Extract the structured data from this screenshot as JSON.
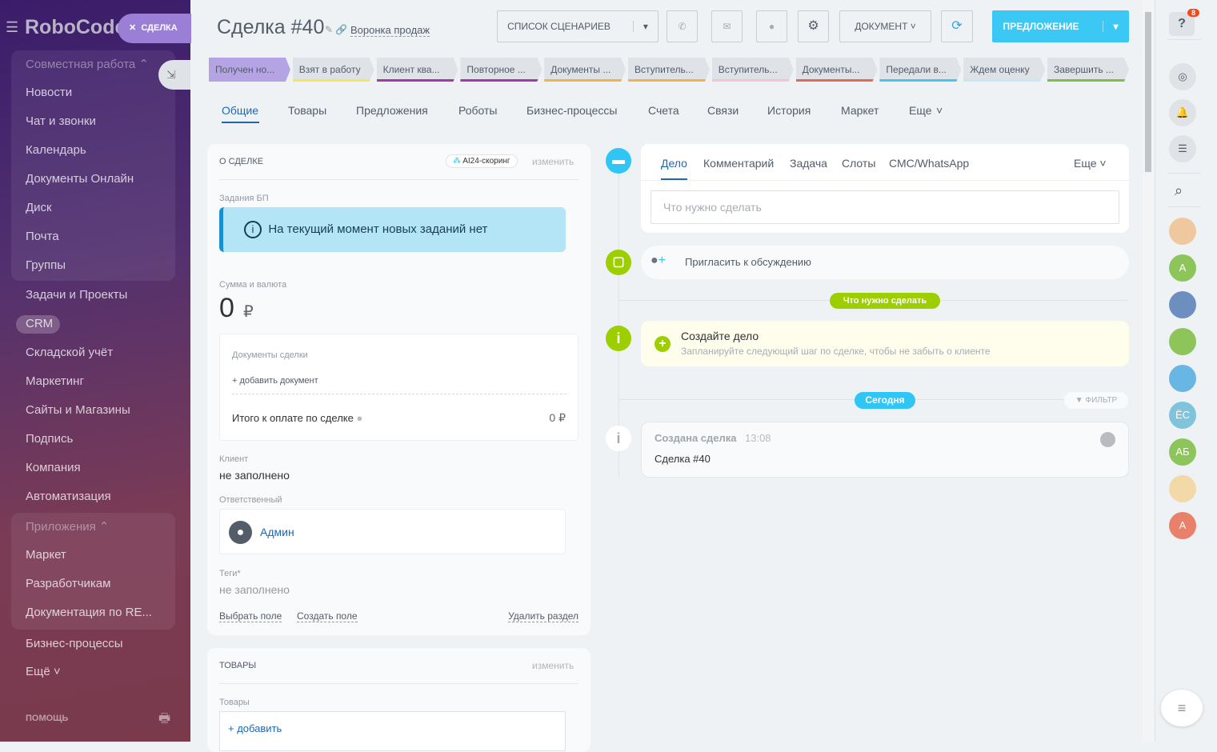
{
  "sidebar": {
    "logo": "RoboCode",
    "deal_pill": "СДЕЛКА",
    "items": [
      {
        "label": "Совместная работа ⌃"
      },
      {
        "label": "Новости"
      },
      {
        "label": "Чат и звонки"
      },
      {
        "label": "Календарь"
      },
      {
        "label": "Документы Онлайн"
      },
      {
        "label": "Диск"
      },
      {
        "label": "Почта"
      },
      {
        "label": "Группы"
      },
      {
        "label": "Задачи и Проекты"
      },
      {
        "label": "CRM"
      },
      {
        "label": "Складской учёт"
      },
      {
        "label": "Маркетинг"
      },
      {
        "label": "Сайты и Магазины"
      },
      {
        "label": "Подпись"
      },
      {
        "label": "Компания"
      },
      {
        "label": "Автоматизация"
      },
      {
        "label": "Приложения ⌃"
      },
      {
        "label": "Маркет"
      },
      {
        "label": "Разработчикам"
      },
      {
        "label": "Документация по RE..."
      },
      {
        "label": "Бизнес-процессы"
      },
      {
        "label": "Ещё ˅"
      }
    ],
    "help": "ПОМОЩЬ"
  },
  "header": {
    "title": "Сделка #40",
    "funnel": "Воронка продаж",
    "scenarios": "СПИСОК СЦЕНАРИЕВ",
    "document": "ДОКУМЕНТ",
    "proposal": "ПРЕДЛОЖЕНИЕ"
  },
  "stages": [
    {
      "label": "Получен но...",
      "color": "#b5a4e3",
      "active": true
    },
    {
      "label": "Взят в работу",
      "color": "#f5e65f"
    },
    {
      "label": "Клиент ква...",
      "color": "#a33aa6"
    },
    {
      "label": "Повторное ...",
      "color": "#a33aa6"
    },
    {
      "label": "Документы ...",
      "color": "#f0b44b"
    },
    {
      "label": "Вступитель...",
      "color": "#f0b44b"
    },
    {
      "label": "Вступитель...",
      "color": "#f3c3d6"
    },
    {
      "label": "Документы...",
      "color": "#e06a5a"
    },
    {
      "label": "Передали в...",
      "color": "#47c5ee"
    },
    {
      "label": "Ждем оценку",
      "color": "#c4e8f6"
    },
    {
      "label": "Завершить ...",
      "color": "#7bc043"
    }
  ],
  "tabs": [
    {
      "label": "Общие",
      "active": true
    },
    {
      "label": "Товары"
    },
    {
      "label": "Предложения"
    },
    {
      "label": "Роботы"
    },
    {
      "label": "Бизнес-процессы"
    },
    {
      "label": "Счета"
    },
    {
      "label": "Связи"
    },
    {
      "label": "История"
    },
    {
      "label": "Маркет"
    },
    {
      "label": "Еще"
    }
  ],
  "about": {
    "title": "О СДЕЛКЕ",
    "scoring": "AI24-скоринг",
    "edit": "изменить",
    "bp_label": "Задания БП",
    "bp_notice": "На текущий момент новых заданий нет",
    "sum_label": "Сумма и валюта",
    "sum": "0",
    "currency": "₽",
    "docs_label": "Документы сделки",
    "add_doc": "+ добавить документ",
    "total_label": "Итого к оплате по сделке",
    "total": "0 ₽",
    "client_label": "Клиент",
    "client": "не заполнено",
    "resp_label": "Ответственный",
    "resp": "Админ",
    "tags_label": "Теги*",
    "tags": "не заполнено",
    "choose_field": "Выбрать поле",
    "create_field": "Создать поле",
    "delete_section": "Удалить раздел"
  },
  "products": {
    "title": "ТОВАРЫ",
    "edit": "изменить",
    "label": "Товары",
    "add": "+ добавить"
  },
  "activity": {
    "tabs": [
      "Дело",
      "Комментарий",
      "Задача",
      "Слоты",
      "СМС/WhatsApp"
    ],
    "more": "Еще",
    "placeholder": "Что нужно сделать",
    "invite": "Пригласить к обсуждению",
    "todo_badge": "Что нужно сделать",
    "create_title": "Создайте дело",
    "create_sub": "Запланируйте следующий шаг по сделке, чтобы не забыть о клиенте",
    "today": "Сегодня",
    "filter": "ФИЛЬТР",
    "event_title": "Создана сделка",
    "event_time": "13:08",
    "event_body": "Сделка #40"
  },
  "right": {
    "badge": "8",
    "avatars": [
      {
        "text": "",
        "color": "#f0c8a0"
      },
      {
        "text": "А",
        "color": "#8dc55a"
      },
      {
        "text": "",
        "color": "#6c8fbf"
      },
      {
        "text": "",
        "color": "#8dc55a"
      },
      {
        "text": "",
        "color": "#68b6e4"
      },
      {
        "text": "ЁС",
        "color": "#80c4dc"
      },
      {
        "text": "АБ",
        "color": "#8dc55a"
      },
      {
        "text": "",
        "color": "#f3d9a8"
      },
      {
        "text": "А",
        "color": "#e8806a"
      }
    ]
  }
}
